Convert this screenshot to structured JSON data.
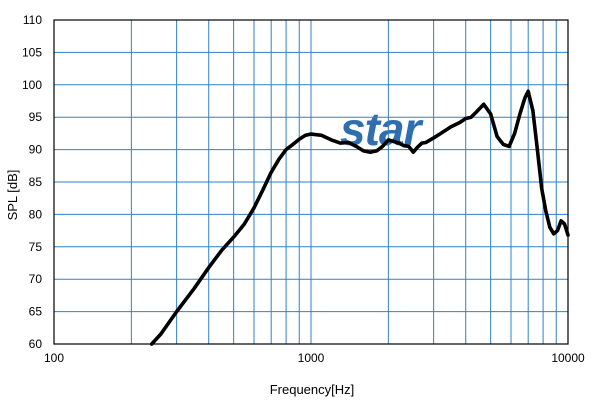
{
  "chart_data": {
    "type": "line",
    "title": "",
    "xlabel": "Frequency[Hz]",
    "ylabel": "SPL [dB]",
    "x_scale": "log",
    "xlim": [
      100,
      10000
    ],
    "ylim": [
      60,
      110
    ],
    "grid": true,
    "x_ticks": [
      {
        "value": 100,
        "label": "100"
      },
      {
        "value": 1000,
        "label": "1000"
      },
      {
        "value": 10000,
        "label": "10000"
      }
    ],
    "y_ticks": [
      {
        "value": 60,
        "label": "60"
      },
      {
        "value": 65,
        "label": "65"
      },
      {
        "value": 70,
        "label": "70"
      },
      {
        "value": 75,
        "label": "75"
      },
      {
        "value": 80,
        "label": "80"
      },
      {
        "value": 85,
        "label": "85"
      },
      {
        "value": 90,
        "label": "90"
      },
      {
        "value": 95,
        "label": "95"
      },
      {
        "value": 100,
        "label": "100"
      },
      {
        "value": 105,
        "label": "105"
      },
      {
        "value": 110,
        "label": "110"
      }
    ],
    "series": [
      {
        "color": "#000000",
        "points": [
          [
            240,
            60.0
          ],
          [
            260,
            61.5
          ],
          [
            300,
            65.0
          ],
          [
            350,
            68.5
          ],
          [
            400,
            71.8
          ],
          [
            450,
            74.5
          ],
          [
            500,
            76.5
          ],
          [
            550,
            78.5
          ],
          [
            600,
            81.0
          ],
          [
            650,
            83.8
          ],
          [
            700,
            86.5
          ],
          [
            750,
            88.5
          ],
          [
            800,
            90.0
          ],
          [
            850,
            90.8
          ],
          [
            900,
            91.6
          ],
          [
            950,
            92.2
          ],
          [
            1000,
            92.4
          ],
          [
            1100,
            92.2
          ],
          [
            1200,
            91.5
          ],
          [
            1300,
            91.0
          ],
          [
            1400,
            91.1
          ],
          [
            1500,
            90.5
          ],
          [
            1600,
            89.8
          ],
          [
            1700,
            89.6
          ],
          [
            1800,
            89.8
          ],
          [
            1900,
            90.5
          ],
          [
            2000,
            91.5
          ],
          [
            2200,
            91.0
          ],
          [
            2300,
            90.6
          ],
          [
            2400,
            90.5
          ],
          [
            2500,
            89.6
          ],
          [
            2600,
            90.4
          ],
          [
            2700,
            91.0
          ],
          [
            2800,
            91.1
          ],
          [
            3000,
            91.8
          ],
          [
            3200,
            92.5
          ],
          [
            3500,
            93.5
          ],
          [
            3800,
            94.2
          ],
          [
            4000,
            94.8
          ],
          [
            4200,
            95.0
          ],
          [
            4400,
            95.8
          ],
          [
            4700,
            97.0
          ],
          [
            5000,
            95.5
          ],
          [
            5300,
            92.0
          ],
          [
            5600,
            90.8
          ],
          [
            5900,
            90.5
          ],
          [
            6200,
            92.5
          ],
          [
            6500,
            95.5
          ],
          [
            6800,
            98.0
          ],
          [
            7000,
            99.0
          ],
          [
            7300,
            96.0
          ],
          [
            7600,
            90.0
          ],
          [
            7900,
            84.0
          ],
          [
            8200,
            80.5
          ],
          [
            8500,
            78.0
          ],
          [
            8800,
            77.0
          ],
          [
            9100,
            77.5
          ],
          [
            9400,
            79.0
          ],
          [
            9700,
            78.5
          ],
          [
            10000,
            76.8
          ]
        ]
      }
    ]
  },
  "logo": {
    "text": "star",
    "color": "#2f6fb0"
  },
  "colors": {
    "grid": "#2f82c8",
    "frame": "#000000",
    "curve": "#000000"
  }
}
